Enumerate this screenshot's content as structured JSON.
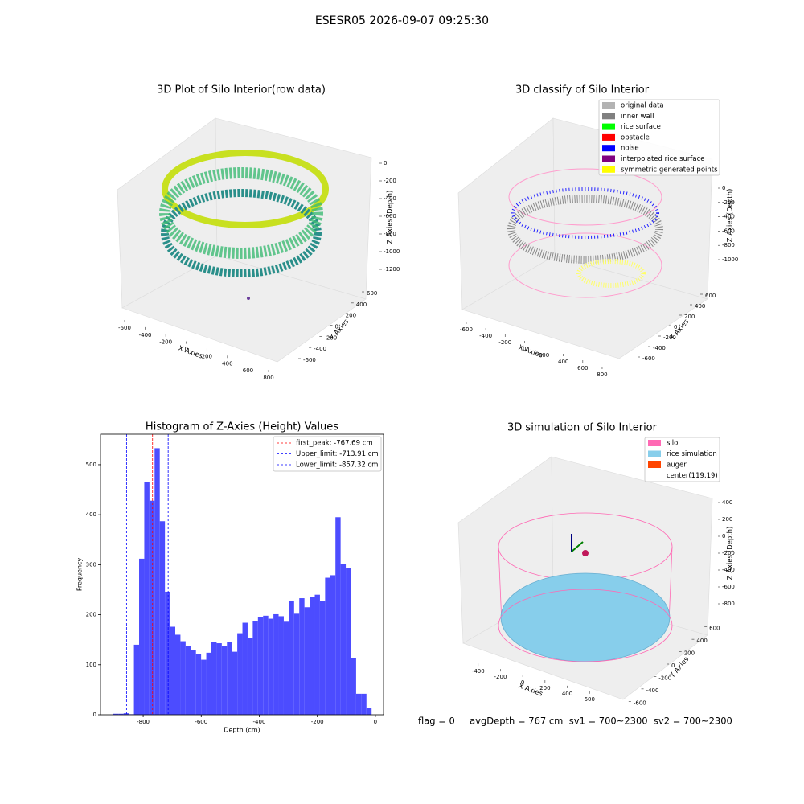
{
  "figure": {
    "title": "ESESR05 2026-09-07 09:25:30",
    "status": "flag = 0     avgDepth = 767 cm  sv1 = 700~2300  sv2 = 700~2300"
  },
  "chart_data": [
    {
      "type": "scatter3d",
      "title": "3D Plot of Silo Interior(row data)",
      "x_label": "X Axies",
      "y_label": "Y Axies",
      "z_label": "Z Axies (Depth)",
      "xlim": [
        -700,
        850
      ],
      "xticks": [
        -600,
        -400,
        -200,
        0,
        200,
        400,
        600,
        800
      ],
      "ylim": [
        -700,
        700
      ],
      "yticks": [
        -600,
        -400,
        -200,
        0,
        200,
        400,
        600
      ],
      "zlim": [
        -1300,
        100
      ],
      "zticks": [
        0,
        -200,
        -400,
        -600,
        -800,
        -1000,
        -1200
      ]
    },
    {
      "type": "scatter3d",
      "title": "3D classify of Silo Interior",
      "x_label": "X Axies",
      "y_label": "Y Axies",
      "z_label": "Z Axies (Depth)",
      "xlim": [
        -700,
        850
      ],
      "xticks": [
        -600,
        -400,
        -200,
        0,
        200,
        400,
        600,
        800
      ],
      "ylim": [
        -700,
        700
      ],
      "yticks": [
        -600,
        -400,
        -200,
        0,
        200,
        400,
        600
      ],
      "zlim": [
        -1200,
        100
      ],
      "zticks": [
        0,
        -200,
        -400,
        -600,
        -800,
        -1000
      ],
      "legend": [
        {
          "name": "original data",
          "color": "#b3b3b3"
        },
        {
          "name": "inner wall",
          "color": "#808080"
        },
        {
          "name": "rice surface",
          "color": "#00ff00"
        },
        {
          "name": "obstacle",
          "color": "#ff0000"
        },
        {
          "name": "noise",
          "color": "#0000ff"
        },
        {
          "name": "interpolated rice surface",
          "color": "#800080"
        },
        {
          "name": "symmetric generated points",
          "color": "#ffff00"
        }
      ]
    },
    {
      "type": "surface3d",
      "title": "3D simulation of Silo Interior",
      "x_label": "X Axies",
      "y_label": "Y Axies",
      "z_label": "Z Axies (Depth)",
      "xlim": [
        -550,
        750
      ],
      "xticks": [
        -400,
        -200,
        0,
        200,
        400,
        600
      ],
      "ylim": [
        -700,
        700
      ],
      "yticks": [
        -600,
        -400,
        -200,
        0,
        200,
        400,
        600
      ],
      "zlim": [
        -900,
        500
      ],
      "zticks": [
        400,
        200,
        0,
        -200,
        -400,
        -600,
        -800
      ],
      "legend": [
        {
          "name": "silo",
          "color": "#ff69b4"
        },
        {
          "name": "rice simulation",
          "color": "#87ceeb"
        },
        {
          "name": "auger",
          "color": "#ff4500"
        },
        {
          "name": "center(119,19)"
        }
      ]
    },
    {
      "type": "histogram",
      "title": "Histogram of Z-Axies (Height) Values",
      "x_label": "Depth (cm)",
      "y_label": "Frequency",
      "color": "#4c4cff",
      "bins": [
        -903,
        -885.2,
        -867.4,
        -849.6,
        -831.8,
        -814,
        -796.2,
        -778.4,
        -760.6,
        -742.8,
        -725,
        -707.2,
        -689.4,
        -671.6,
        -653.8,
        -636,
        -618.2,
        -600.4,
        -582.6,
        -564.8,
        -547,
        -529.2,
        -511.4,
        -493.6,
        -475.8,
        -458,
        -440.2,
        -422.4,
        -404.6,
        -386.8,
        -369,
        -351.2,
        -333.4,
        -315.6,
        -297.8,
        -280,
        -262.2,
        -244.4,
        -226.6,
        -208.8,
        -191,
        -173.2,
        -155.4,
        -137.6,
        -119.8,
        -102,
        -84.2,
        -66.4,
        -48.6,
        -30.8,
        -13
      ],
      "values": [
        2,
        2,
        3,
        1,
        140,
        312,
        466,
        428,
        533,
        387,
        246,
        176,
        160,
        147,
        137,
        130,
        122,
        110,
        124,
        146,
        143,
        137,
        145,
        126,
        163,
        184,
        154,
        187,
        195,
        198,
        192,
        201,
        197,
        186,
        228,
        202,
        233,
        215,
        235,
        240,
        228,
        274,
        279,
        395,
        302,
        293,
        113,
        42,
        42,
        13
      ],
      "xlim": [
        -947,
        28
      ],
      "xticks": [
        -800,
        -600,
        -400,
        -200,
        0
      ],
      "ylim": [
        0,
        561
      ],
      "yticks": [
        0,
        100,
        200,
        300,
        400,
        500
      ],
      "lines": [
        {
          "name": "first_peak: -767.69 cm",
          "value": -767.69,
          "color": "#ff0000"
        },
        {
          "name": "Upper_limit: -713.91 cm",
          "value": -713.91,
          "color": "#0000ff"
        },
        {
          "name": "Lower_limit: -857.32 cm",
          "value": -857.32,
          "color": "#0000ff"
        }
      ]
    }
  ]
}
